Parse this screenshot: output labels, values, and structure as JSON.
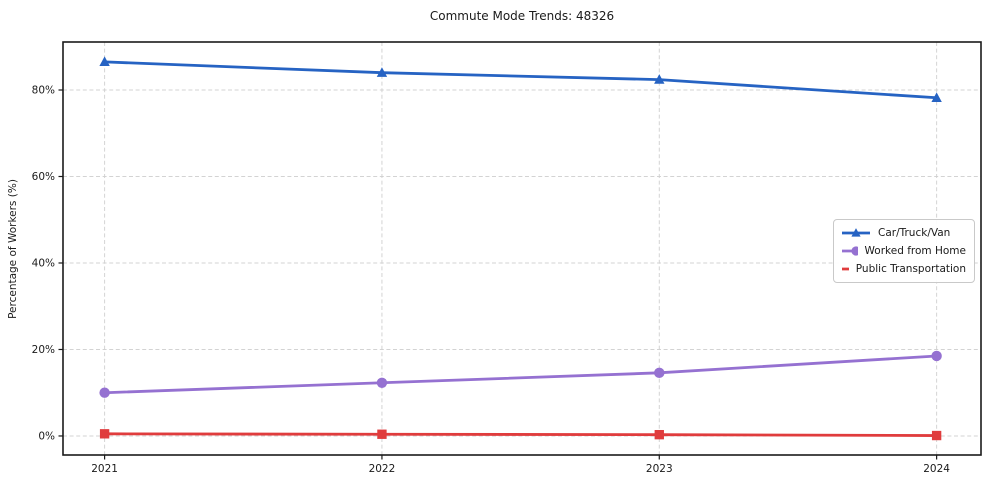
{
  "chart_data": {
    "type": "line",
    "title": "Commute Mode Trends: 48326",
    "xlabel": "",
    "ylabel": "Percentage of Workers (%)",
    "x": [
      2021,
      2022,
      2023,
      2024
    ],
    "x_tick_labels": [
      "2021",
      "2022",
      "2023",
      "2024"
    ],
    "y_ticks": [
      0,
      20,
      40,
      60,
      80
    ],
    "y_tick_labels": [
      "0%",
      "20%",
      "40%",
      "60%",
      "80%"
    ],
    "xlim": [
      2020.85,
      2024.16
    ],
    "ylim": [
      -4.4,
      91.1
    ],
    "grid": true,
    "grid_style": "dashed",
    "grid_color": "#cfcfcf",
    "spine_color": "#1a1a1a",
    "legend_position": "center-right",
    "series": [
      {
        "name": "Car/Truck/Van",
        "color": "#2663c3",
        "marker": "triangle",
        "values": [
          86.5,
          84.0,
          82.4,
          78.2
        ]
      },
      {
        "name": "Worked from Home",
        "color": "#9571d1",
        "marker": "circle",
        "values": [
          10.0,
          12.3,
          14.6,
          18.5
        ]
      },
      {
        "name": "Public Transportation",
        "color": "#e03c3d",
        "marker": "square",
        "values": [
          0.5,
          0.4,
          0.3,
          0.1
        ]
      }
    ]
  }
}
